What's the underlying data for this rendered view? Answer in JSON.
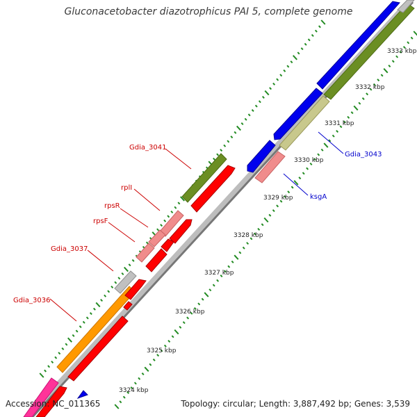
{
  "title": "Gluconacetobacter diazotrophicus PAI 5, complete genome",
  "footer": {
    "accession": "Accession: NC_011365",
    "summary": "Topology: circular; Length: 3,887,492 bp; Genes: 3,539"
  },
  "kbp_labels": [
    "3324 kbp",
    "3325 kbp",
    "3326 kbp",
    "3327 kbp",
    "3328 kbp",
    "3329 kbp",
    "3330 kbp",
    "3331 kbp",
    "3332 kbp",
    "3333 kbp"
  ],
  "gene_labels_left": [
    "Gdia_3041",
    "rplI",
    "rpsR",
    "rpsF",
    "Gdia_3037",
    "Gdia_3036"
  ],
  "gene_labels_right": [
    "Gdia_3043",
    "ksgA"
  ],
  "colors": {
    "backbone": "#888888",
    "red": "#ff0000",
    "blue": "#0000ee",
    "olive": "#6b8e23",
    "khaki": "#c8c88c",
    "orange": "#ff9900",
    "pink": "#f08c8c",
    "magenta": "#ff3399",
    "gray": "#c0c0c0",
    "tick": "#228b22",
    "label_left": "#cc0000",
    "label_right": "#0000cc"
  }
}
